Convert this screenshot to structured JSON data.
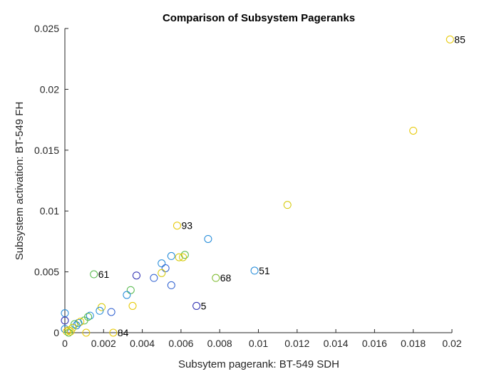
{
  "chart_data": {
    "type": "scatter",
    "title": "Comparison of Subsystem Pageranks",
    "xlabel": "Subsytem pagerank: BT-549 SDH",
    "ylabel": "Subsystem activation: BT-549 FH",
    "xlim": [
      0,
      0.02
    ],
    "ylim": [
      0,
      0.025
    ],
    "xticks": [
      "0",
      "0.002",
      "0.004",
      "0.006",
      "0.008",
      "0.01",
      "0.012",
      "0.014",
      "0.016",
      "0.018",
      "0.02"
    ],
    "yticks": [
      "0",
      "0.005",
      "0.01",
      "0.015",
      "0.02",
      "0.025"
    ],
    "grid": false,
    "marker": "open circle",
    "points": [
      {
        "x": 0.0199,
        "y": 0.0241,
        "color": "#e6c800",
        "label": "85"
      },
      {
        "x": 0.018,
        "y": 0.0166,
        "color": "#e6c800"
      },
      {
        "x": 0.0115,
        "y": 0.0105,
        "color": "#d4c800"
      },
      {
        "x": 0.0058,
        "y": 0.0088,
        "color": "#e6c800",
        "label": "93"
      },
      {
        "x": 0.0074,
        "y": 0.0077,
        "color": "#1e88d8"
      },
      {
        "x": 0.0062,
        "y": 0.0064,
        "color": "#52b848"
      },
      {
        "x": 0.0055,
        "y": 0.0063,
        "color": "#1e88d8"
      },
      {
        "x": 0.0059,
        "y": 0.0062,
        "color": "#d4c800"
      },
      {
        "x": 0.0061,
        "y": 0.0062,
        "color": "#d4c800"
      },
      {
        "x": 0.005,
        "y": 0.0057,
        "color": "#1e88d8"
      },
      {
        "x": 0.0052,
        "y": 0.0053,
        "color": "#2d5fd0"
      },
      {
        "x": 0.0098,
        "y": 0.0051,
        "color": "#1e88d8",
        "label": "51"
      },
      {
        "x": 0.005,
        "y": 0.0049,
        "color": "#d4c800"
      },
      {
        "x": 0.0015,
        "y": 0.0048,
        "color": "#52b848",
        "label": "61"
      },
      {
        "x": 0.0037,
        "y": 0.0047,
        "color": "#2a2ab0"
      },
      {
        "x": 0.0046,
        "y": 0.0045,
        "color": "#2d5fd0"
      },
      {
        "x": 0.0078,
        "y": 0.0045,
        "color": "#7ab828",
        "label": "68"
      },
      {
        "x": 0.0055,
        "y": 0.0039,
        "color": "#2d5fd0"
      },
      {
        "x": 0.0034,
        "y": 0.0035,
        "color": "#52b848"
      },
      {
        "x": 0.0032,
        "y": 0.0031,
        "color": "#1e88d8"
      },
      {
        "x": 0.0068,
        "y": 0.0022,
        "color": "#2a2ab0",
        "label": "5"
      },
      {
        "x": 0.0035,
        "y": 0.0022,
        "color": "#e6c800"
      },
      {
        "x": 0.0019,
        "y": 0.0021,
        "color": "#d4c800"
      },
      {
        "x": 0.0018,
        "y": 0.0018,
        "color": "#1e88d8"
      },
      {
        "x": 0.0024,
        "y": 0.0017,
        "color": "#2d5fd0"
      },
      {
        "x": 0.0,
        "y": 0.0016,
        "color": "#1e88d8"
      },
      {
        "x": 0.0013,
        "y": 0.0014,
        "color": "#1e88d8"
      },
      {
        "x": 0.0012,
        "y": 0.0013,
        "color": "#52b848"
      },
      {
        "x": 0.0,
        "y": 0.001,
        "color": "#2a2ab0"
      },
      {
        "x": 0.001,
        "y": 0.001,
        "color": "#52b848"
      },
      {
        "x": 0.0007,
        "y": 0.0008,
        "color": "#1e88d8"
      },
      {
        "x": 0.0008,
        "y": 0.0009,
        "color": "#e6c800"
      },
      {
        "x": 0.0005,
        "y": 0.0007,
        "color": "#52b848"
      },
      {
        "x": 0.0006,
        "y": 0.0006,
        "color": "#1e88d8"
      },
      {
        "x": 0.0004,
        "y": 0.0004,
        "color": "#d4c800"
      },
      {
        "x": 0.0,
        "y": 0.0003,
        "color": "#1e88d8"
      },
      {
        "x": 0.0002,
        "y": 0.0002,
        "color": "#d4c800"
      },
      {
        "x": 0.0001,
        "y": 0.0001,
        "color": "#e6c800"
      },
      {
        "x": 0.0002,
        "y": 0.0,
        "color": "#52b848"
      },
      {
        "x": 0.0003,
        "y": 0.0001,
        "color": "#e6c800"
      },
      {
        "x": 0.0011,
        "y": 0.0,
        "color": "#e6c800"
      },
      {
        "x": 0.0025,
        "y": 0.0,
        "color": "#e6c800",
        "label": "84"
      }
    ]
  }
}
